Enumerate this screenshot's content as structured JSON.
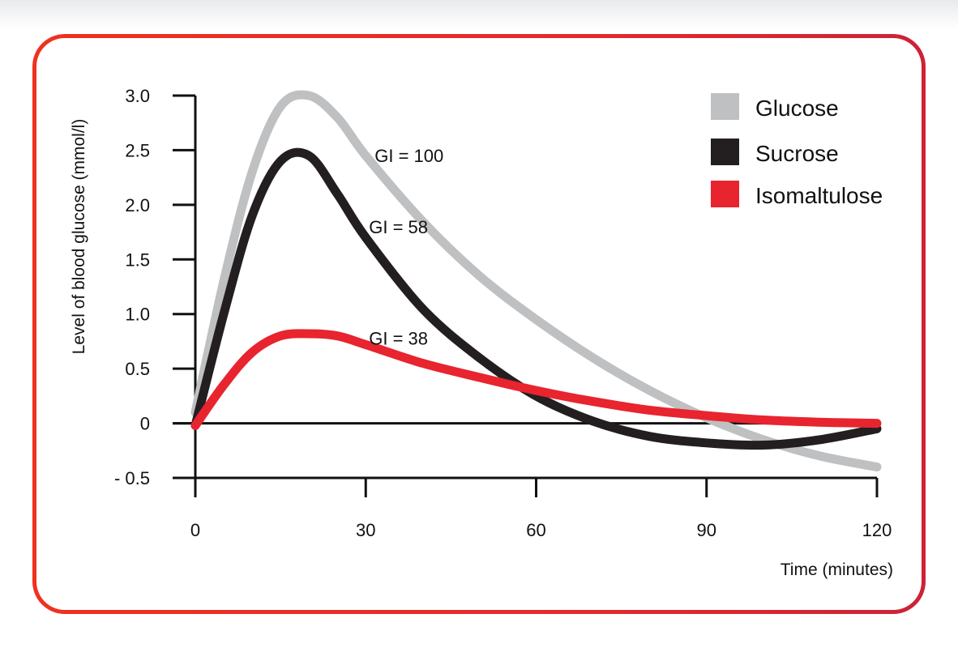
{
  "chart_data": {
    "type": "line",
    "title": "",
    "xlabel": "Time (minutes)",
    "ylabel": "Level of blood glucose (mmol/l)",
    "xlim": [
      0,
      120
    ],
    "ylim": [
      -0.5,
      3.0
    ],
    "xticks": [
      0,
      30,
      60,
      90,
      120
    ],
    "yticks": [
      3.0,
      2.5,
      2.0,
      1.5,
      1.0,
      0.5,
      0,
      -0.5
    ],
    "ytick_labels": [
      "3.0",
      "2.5",
      "2.0",
      "1.5",
      "1.0",
      "0.5",
      "0",
      "- 0.5"
    ],
    "grid": false,
    "legend_position": "top-right",
    "series": [
      {
        "name": "Glucose",
        "color": "#bfc0c2",
        "x": [
          0,
          5,
          10,
          15,
          20,
          25,
          30,
          40,
          50,
          60,
          70,
          80,
          90,
          100,
          110,
          120
        ],
        "y": [
          0.1,
          1.3,
          2.3,
          2.9,
          3.0,
          2.8,
          2.45,
          1.85,
          1.35,
          0.95,
          0.6,
          0.3,
          0.05,
          -0.15,
          -0.3,
          -0.4
        ]
      },
      {
        "name": "Sucrose",
        "color": "#231f20",
        "x": [
          0,
          5,
          10,
          15,
          20,
          25,
          30,
          40,
          50,
          60,
          70,
          80,
          90,
          100,
          110,
          120
        ],
        "y": [
          -0.02,
          1.0,
          1.9,
          2.4,
          2.45,
          2.1,
          1.7,
          1.05,
          0.6,
          0.25,
          0.02,
          -0.12,
          -0.18,
          -0.2,
          -0.15,
          -0.05
        ]
      },
      {
        "name": "Isomaltulose",
        "color": "#e8242f",
        "x": [
          0,
          5,
          10,
          15,
          20,
          25,
          30,
          40,
          50,
          60,
          70,
          80,
          90,
          100,
          110,
          120
        ],
        "y": [
          -0.02,
          0.35,
          0.65,
          0.8,
          0.82,
          0.8,
          0.72,
          0.55,
          0.42,
          0.3,
          0.2,
          0.12,
          0.07,
          0.03,
          0.01,
          0.0
        ]
      }
    ],
    "annotations": [
      {
        "text": "GI = 100",
        "x": 31,
        "y": 2.45
      },
      {
        "text": "GI = 58",
        "x": 30,
        "y": 1.8
      },
      {
        "text": "GI = 38",
        "x": 30,
        "y": 0.78
      }
    ]
  }
}
